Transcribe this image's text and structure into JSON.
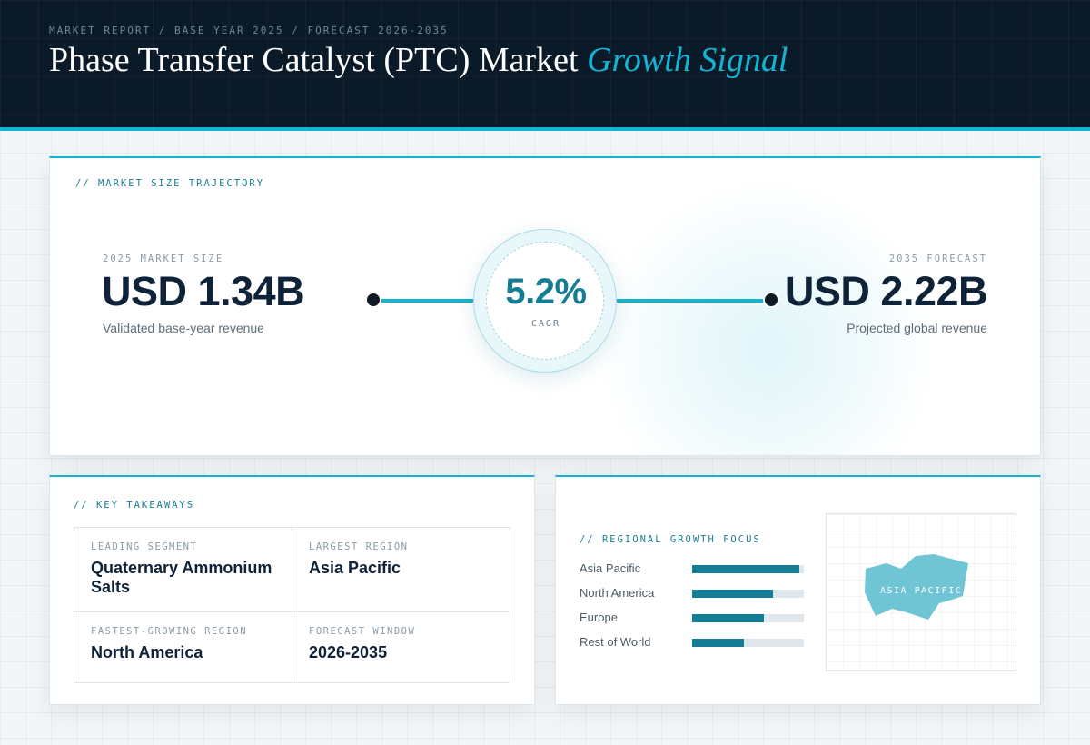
{
  "header": {
    "eyebrow": "MARKET REPORT / BASE YEAR 2025 / FORECAST 2026-2035",
    "title_main": "Phase Transfer Catalyst (PTC) Market",
    "title_accent": "Growth Signal"
  },
  "trajectory": {
    "label": "// MARKET SIZE TRAJECTORY",
    "start": {
      "label": "2025 MARKET SIZE",
      "value": "USD 1.34B",
      "caption": "Validated base-year revenue"
    },
    "cagr": {
      "value": "5.2%",
      "label": "CAGR"
    },
    "end": {
      "label": "2035 FORECAST",
      "value": "USD 2.22B",
      "caption": "Projected global revenue"
    }
  },
  "takeaways": {
    "label": "// KEY TAKEAWAYS",
    "items": [
      {
        "label": "LEADING SEGMENT",
        "value": "Quaternary Ammonium Salts"
      },
      {
        "label": "LARGEST REGION",
        "value": "Asia Pacific"
      },
      {
        "label": "FASTEST-GROWING REGION",
        "value": "North America"
      },
      {
        "label": "FORECAST WINDOW",
        "value": "2026-2035"
      }
    ]
  },
  "regional": {
    "label": "// REGIONAL GROWTH FOCUS",
    "bars": [
      {
        "name": "Asia Pacific",
        "share": 0.96
      },
      {
        "name": "North America",
        "share": 0.72
      },
      {
        "name": "Europe",
        "share": 0.64
      },
      {
        "name": "Rest of World",
        "share": 0.46
      }
    ],
    "map_label": "ASIA PACIFIC"
  },
  "colors": {
    "accent": "#12b5cf",
    "accent_dark": "#157d93",
    "header_bg": "#0b1a28",
    "text_dark": "#0e2337",
    "map_fill": "#6fc5d3"
  }
}
